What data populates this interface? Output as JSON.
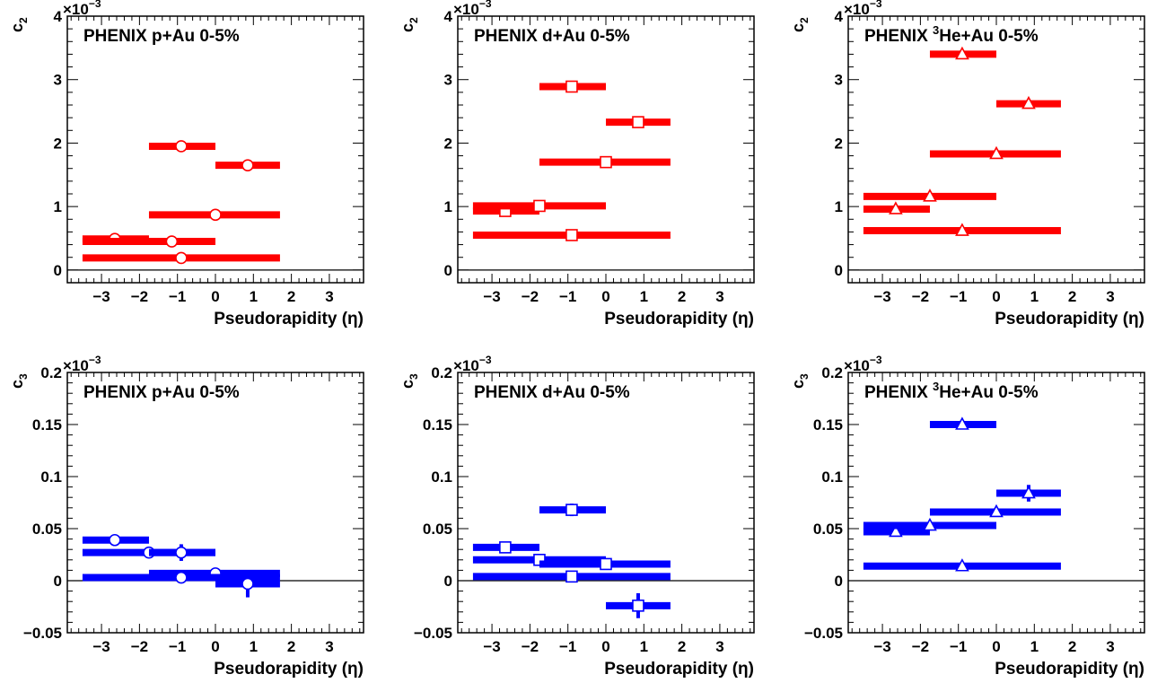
{
  "figure": {
    "colors": {
      "c2": "#ff0000",
      "c3": "#0000ff",
      "axis": "#000000"
    },
    "marker_by_system": {
      "p+Au": "circle",
      "d+Au": "square",
      "3He+Au": "triangle"
    }
  },
  "chart_data": [
    {
      "type": "scatter",
      "coefficient": "c2",
      "title": "PHENIX p+Au 0-5%",
      "title_sup": "",
      "ylabel": "c",
      "ylabel_sub": "2",
      "multiplier": "×10",
      "multiplier_exp": "−3",
      "xlabel": "Pseudorapidity (η)",
      "xlim": [
        -3.9,
        3.9
      ],
      "ylim": [
        -0.2,
        4.0
      ],
      "xticks": [
        -3,
        -2,
        -1,
        0,
        1,
        2,
        3
      ],
      "xtick_labels": [
        "−3",
        "−2",
        "−1",
        "0",
        "1",
        "2",
        "3"
      ],
      "yticks": [
        0,
        1,
        2,
        3,
        4
      ],
      "ytick_labels": [
        "0",
        "1",
        "2",
        "3",
        "4"
      ],
      "grid": false,
      "marker": "circle",
      "color": "#ff0000",
      "points": [
        {
          "x": -2.65,
          "y": 0.49,
          "xlo": -3.5,
          "xhi": -1.75,
          "yerr": 0.05
        },
        {
          "x": -1.15,
          "y": 0.45,
          "xlo": -3.5,
          "xhi": 0.0,
          "yerr": 0.05
        },
        {
          "x": -0.9,
          "y": 1.95,
          "xlo": -1.75,
          "xhi": 0.0,
          "yerr": 0.05
        },
        {
          "x": 0.0,
          "y": 0.87,
          "xlo": -1.75,
          "xhi": 1.7,
          "yerr": 0.05
        },
        {
          "x": -0.9,
          "y": 0.19,
          "xlo": -3.5,
          "xhi": 1.7,
          "yerr": 0.05
        },
        {
          "x": 0.85,
          "y": 1.65,
          "xlo": 0.0,
          "xhi": 1.7,
          "yerr": 0.05
        }
      ]
    },
    {
      "type": "scatter",
      "coefficient": "c2",
      "title": "PHENIX d+Au 0-5%",
      "title_sup": "",
      "ylabel": "c",
      "ylabel_sub": "2",
      "multiplier": "×10",
      "multiplier_exp": "−3",
      "xlabel": "Pseudorapidity (η)",
      "xlim": [
        -3.9,
        3.9
      ],
      "ylim": [
        -0.2,
        4.0
      ],
      "xticks": [
        -3,
        -2,
        -1,
        0,
        1,
        2,
        3
      ],
      "xtick_labels": [
        "−3",
        "−2",
        "−1",
        "0",
        "1",
        "2",
        "3"
      ],
      "yticks": [
        0,
        1,
        2,
        3,
        4
      ],
      "ytick_labels": [
        "0",
        "1",
        "2",
        "3",
        "4"
      ],
      "grid": false,
      "marker": "square",
      "color": "#ff0000",
      "points": [
        {
          "x": -2.65,
          "y": 0.93,
          "xlo": -3.5,
          "xhi": -1.75,
          "yerr": 0.05
        },
        {
          "x": -1.75,
          "y": 1.01,
          "xlo": -3.5,
          "xhi": 0.0,
          "yerr": 0.05
        },
        {
          "x": -0.9,
          "y": 2.89,
          "xlo": -1.75,
          "xhi": 0.0,
          "yerr": 0.05
        },
        {
          "x": 0.0,
          "y": 1.7,
          "xlo": -1.75,
          "xhi": 1.7,
          "yerr": 0.05
        },
        {
          "x": -0.9,
          "y": 0.55,
          "xlo": -3.5,
          "xhi": 1.7,
          "yerr": 0.05
        },
        {
          "x": 0.85,
          "y": 2.33,
          "xlo": 0.0,
          "xhi": 1.7,
          "yerr": 0.05
        }
      ]
    },
    {
      "type": "scatter",
      "coefficient": "c2",
      "title": "PHENIX ",
      "title_sup": "3",
      "title_rest": "He+Au 0-5%",
      "ylabel": "c",
      "ylabel_sub": "2",
      "multiplier": "×10",
      "multiplier_exp": "−3",
      "xlabel": "Pseudorapidity (η)",
      "xlim": [
        -3.9,
        3.9
      ],
      "ylim": [
        -0.2,
        4.0
      ],
      "xticks": [
        -3,
        -2,
        -1,
        0,
        1,
        2,
        3
      ],
      "xtick_labels": [
        "−3",
        "−2",
        "−1",
        "0",
        "1",
        "2",
        "3"
      ],
      "yticks": [
        0,
        1,
        2,
        3,
        4
      ],
      "ytick_labels": [
        "0",
        "1",
        "2",
        "3",
        "4"
      ],
      "grid": false,
      "marker": "triangle",
      "color": "#ff0000",
      "points": [
        {
          "x": -2.65,
          "y": 0.96,
          "xlo": -3.5,
          "xhi": -1.75,
          "yerr": 0.05
        },
        {
          "x": -1.75,
          "y": 1.16,
          "xlo": -3.5,
          "xhi": 0.0,
          "yerr": 0.05
        },
        {
          "x": -0.9,
          "y": 3.4,
          "xlo": -1.75,
          "xhi": 0.0,
          "yerr": 0.05
        },
        {
          "x": 0.0,
          "y": 1.83,
          "xlo": -1.75,
          "xhi": 1.7,
          "yerr": 0.05
        },
        {
          "x": -0.9,
          "y": 0.62,
          "xlo": -3.5,
          "xhi": 1.7,
          "yerr": 0.05
        },
        {
          "x": 0.85,
          "y": 2.62,
          "xlo": 0.0,
          "xhi": 1.7,
          "yerr": 0.05
        }
      ]
    },
    {
      "type": "scatter",
      "coefficient": "c3",
      "title": "PHENIX p+Au 0-5%",
      "title_sup": "",
      "ylabel": "c",
      "ylabel_sub": "3",
      "multiplier": "×10",
      "multiplier_exp": "−3",
      "xlabel": "Pseudorapidity (η)",
      "xlim": [
        -3.9,
        3.9
      ],
      "ylim": [
        -0.05,
        0.2
      ],
      "xticks": [
        -3,
        -2,
        -1,
        0,
        1,
        2,
        3
      ],
      "xtick_labels": [
        "−3",
        "−2",
        "−1",
        "0",
        "1",
        "2",
        "3"
      ],
      "yticks": [
        -0.05,
        0,
        0.05,
        0.1,
        0.15,
        0.2
      ],
      "ytick_labels": [
        "−0.05",
        "0",
        "0.05",
        "0.1",
        "0.15",
        "0.2"
      ],
      "grid": false,
      "marker": "circle",
      "color": "#0000ff",
      "points": [
        {
          "x": -2.65,
          "y": 0.039,
          "xlo": -3.5,
          "xhi": -1.75,
          "yerr": 0.002
        },
        {
          "x": -1.75,
          "y": 0.027,
          "xlo": -3.5,
          "xhi": 0.0,
          "yerr": 0.002
        },
        {
          "x": -0.9,
          "y": 0.027,
          "xlo": -1.75,
          "xhi": 0.0,
          "yerr": 0.008
        },
        {
          "x": 0.0,
          "y": 0.007,
          "xlo": -1.75,
          "xhi": 1.7,
          "yerr": 0.003
        },
        {
          "x": -0.9,
          "y": 0.003,
          "xlo": -3.5,
          "xhi": 1.7,
          "yerr": 0.002
        },
        {
          "x": 0.85,
          "y": -0.003,
          "xlo": 0.0,
          "xhi": 1.7,
          "yerr": 0.013
        }
      ]
    },
    {
      "type": "scatter",
      "coefficient": "c3",
      "title": "PHENIX d+Au 0-5%",
      "title_sup": "",
      "ylabel": "c",
      "ylabel_sub": "3",
      "multiplier": "×10",
      "multiplier_exp": "−3",
      "xlabel": "Pseudorapidity (η)",
      "xlim": [
        -3.9,
        3.9
      ],
      "ylim": [
        -0.05,
        0.2
      ],
      "xticks": [
        -3,
        -2,
        -1,
        0,
        1,
        2,
        3
      ],
      "xtick_labels": [
        "−3",
        "−2",
        "−1",
        "0",
        "1",
        "2",
        "3"
      ],
      "yticks": [
        -0.05,
        0,
        0.05,
        0.1,
        0.15,
        0.2
      ],
      "ytick_labels": [
        "−0.05",
        "0",
        "0.05",
        "0.1",
        "0.15",
        "0.2"
      ],
      "grid": false,
      "marker": "square",
      "color": "#0000ff",
      "points": [
        {
          "x": -2.65,
          "y": 0.032,
          "xlo": -3.5,
          "xhi": -1.75,
          "yerr": 0.002
        },
        {
          "x": -1.75,
          "y": 0.02,
          "xlo": -3.5,
          "xhi": 0.0,
          "yerr": 0.002
        },
        {
          "x": -0.9,
          "y": 0.068,
          "xlo": -1.75,
          "xhi": 0.0,
          "yerr": 0.006
        },
        {
          "x": 0.0,
          "y": 0.016,
          "xlo": -1.75,
          "xhi": 1.7,
          "yerr": 0.002
        },
        {
          "x": -0.9,
          "y": 0.004,
          "xlo": -3.5,
          "xhi": 1.7,
          "yerr": 0.002
        },
        {
          "x": 0.85,
          "y": -0.024,
          "xlo": 0.0,
          "xhi": 1.7,
          "yerr": 0.012
        }
      ]
    },
    {
      "type": "scatter",
      "coefficient": "c3",
      "title": "PHENIX ",
      "title_sup": "3",
      "title_rest": "He+Au 0-5%",
      "ylabel": "c",
      "ylabel_sub": "3",
      "multiplier": "×10",
      "multiplier_exp": "−3",
      "xlabel": "Pseudorapidity (η)",
      "xlim": [
        -3.9,
        3.9
      ],
      "ylim": [
        -0.05,
        0.2
      ],
      "xticks": [
        -3,
        -2,
        -1,
        0,
        1,
        2,
        3
      ],
      "xtick_labels": [
        "−3",
        "−2",
        "−1",
        "0",
        "1",
        "2",
        "3"
      ],
      "yticks": [
        -0.05,
        0,
        0.05,
        0.1,
        0.15,
        0.2
      ],
      "ytick_labels": [
        "−0.05",
        "0",
        "0.05",
        "0.1",
        "0.15",
        "0.2"
      ],
      "grid": false,
      "marker": "triangle",
      "color": "#0000ff",
      "points": [
        {
          "x": -2.65,
          "y": 0.047,
          "xlo": -3.5,
          "xhi": -1.75,
          "yerr": 0.002
        },
        {
          "x": -1.75,
          "y": 0.053,
          "xlo": -3.5,
          "xhi": 0.0,
          "yerr": 0.002
        },
        {
          "x": -0.9,
          "y": 0.15,
          "xlo": -1.75,
          "xhi": 0.0,
          "yerr": 0.004
        },
        {
          "x": 0.0,
          "y": 0.066,
          "xlo": -1.75,
          "xhi": 1.7,
          "yerr": 0.002
        },
        {
          "x": -0.9,
          "y": 0.014,
          "xlo": -3.5,
          "xhi": 1.7,
          "yerr": 0.002
        },
        {
          "x": 0.85,
          "y": 0.084,
          "xlo": 0.0,
          "xhi": 1.7,
          "yerr": 0.008
        }
      ]
    }
  ]
}
